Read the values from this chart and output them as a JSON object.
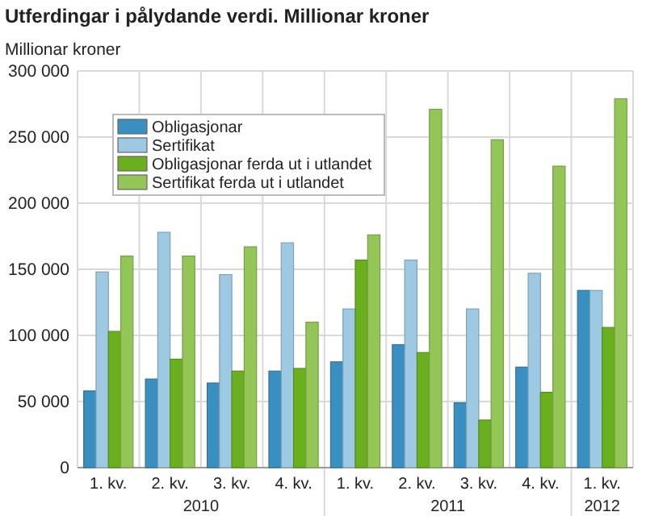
{
  "chart_data": {
    "type": "bar",
    "title": "Utferdingar i pålydande verdi. Millionar kroner",
    "ylabel": "Millionar kroner",
    "categories": [
      "1. kv.",
      "2. kv.",
      "3. kv.",
      "4. kv.",
      "1. kv.",
      "2. kv.",
      "3. kv.",
      "4. kv.",
      "1. kv."
    ],
    "annotations": [
      "2010",
      "2011",
      "2012"
    ],
    "series": [
      {
        "name": "Obligasjonar",
        "color": "#3a8fc1",
        "values": [
          58000,
          67000,
          64000,
          73000,
          80000,
          93000,
          49000,
          76000,
          134000
        ]
      },
      {
        "name": "Sertifikat",
        "color": "#9ec9e2",
        "values": [
          148000,
          178000,
          146000,
          170000,
          120000,
          157000,
          120000,
          147000,
          134000
        ]
      },
      {
        "name": "Obligasjonar ferda ut i utlandet",
        "color": "#6aaf1e",
        "values": [
          103000,
          82000,
          73000,
          75000,
          157000,
          87000,
          36000,
          57000,
          106000
        ]
      },
      {
        "name": "Sertifikat ferda ut i utlandet",
        "color": "#93c657",
        "values": [
          160000,
          160000,
          167000,
          110000,
          176000,
          271000,
          248000,
          228000,
          279000
        ]
      }
    ],
    "ylim": [
      0,
      300000
    ],
    "yticks": [
      0,
      {
        "value": 50000,
        "label": "50 000"
      },
      {
        "value": 100000,
        "label": "100 000"
      },
      {
        "value": 150000,
        "label": "150 000"
      },
      {
        "value": 200000,
        "label": "200 000"
      },
      {
        "value": 250000,
        "label": "250 000"
      },
      {
        "value": 300000,
        "label": "300 000"
      }
    ],
    "grid": true,
    "legend": "top left"
  }
}
